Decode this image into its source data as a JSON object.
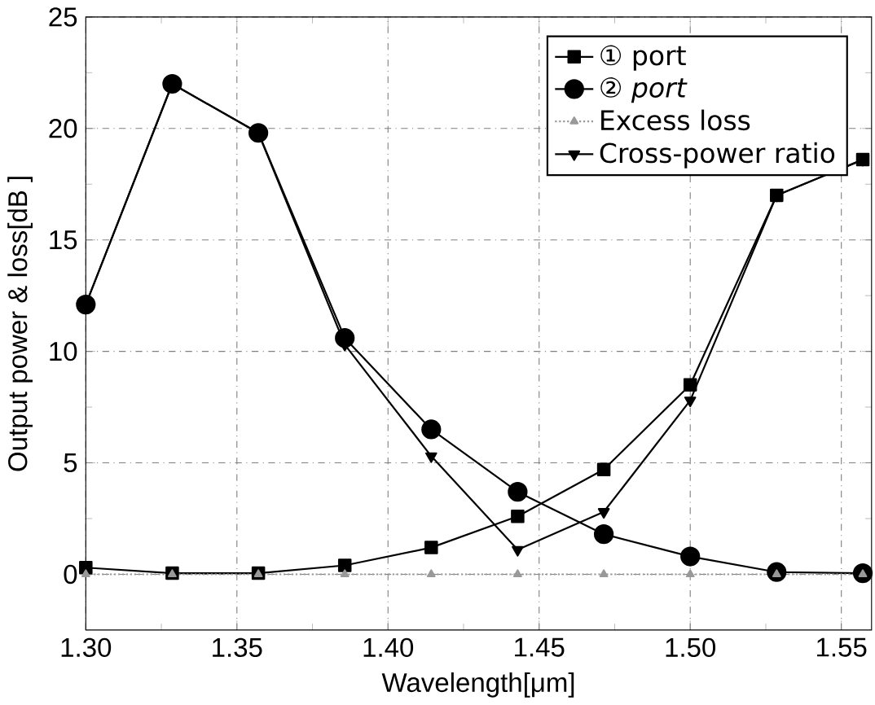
{
  "chart_data": {
    "type": "line",
    "xlabel": "Wavelength[μm]",
    "ylabel": "Output power & loss[dB ]",
    "x": [
      1.3,
      1.3286,
      1.3571,
      1.3857,
      1.4143,
      1.4429,
      1.4714,
      1.5,
      1.5286,
      1.5571
    ],
    "xlim": [
      1.3,
      1.56
    ],
    "xticks": [
      {
        "value": 1.3,
        "label": "1.30"
      },
      1.35,
      {
        "value": 1.4,
        "label": "1.40"
      },
      1.45,
      {
        "value": 1.5,
        "label": "1.50"
      },
      1.55
    ],
    "ylim": [
      -2.5,
      25
    ],
    "yticks": [
      0,
      5,
      10,
      15,
      20,
      25
    ],
    "grid": true,
    "legend": "top right",
    "series": [
      {
        "name": "① port",
        "color": "#000000",
        "marker": "square",
        "line_style": "solid",
        "values": [
          0.3,
          0.05,
          0.05,
          0.4,
          1.2,
          2.6,
          4.7,
          8.5,
          17.0,
          18.6
        ]
      },
      {
        "name": "② *port*",
        "color": "#000000",
        "marker": "circle",
        "line_style": "solid",
        "values": [
          12.1,
          22.0,
          19.8,
          10.6,
          6.5,
          3.7,
          1.8,
          0.8,
          0.1,
          0.05
        ]
      },
      {
        "name": "Excess loss",
        "color": "#999999",
        "marker": "triangle",
        "line_style": "dotted",
        "values": [
          0.0,
          0.0,
          0.0,
          0.0,
          0.0,
          0.0,
          0.0,
          0.0,
          0.0,
          0.0
        ]
      },
      {
        "name": "Cross-power ratio",
        "color": "#000000",
        "marker": "triangle-down",
        "line_style": "solid",
        "values": [
          12.1,
          22.0,
          19.8,
          10.3,
          5.3,
          1.1,
          2.8,
          7.8,
          17.0,
          18.6
        ]
      }
    ]
  }
}
